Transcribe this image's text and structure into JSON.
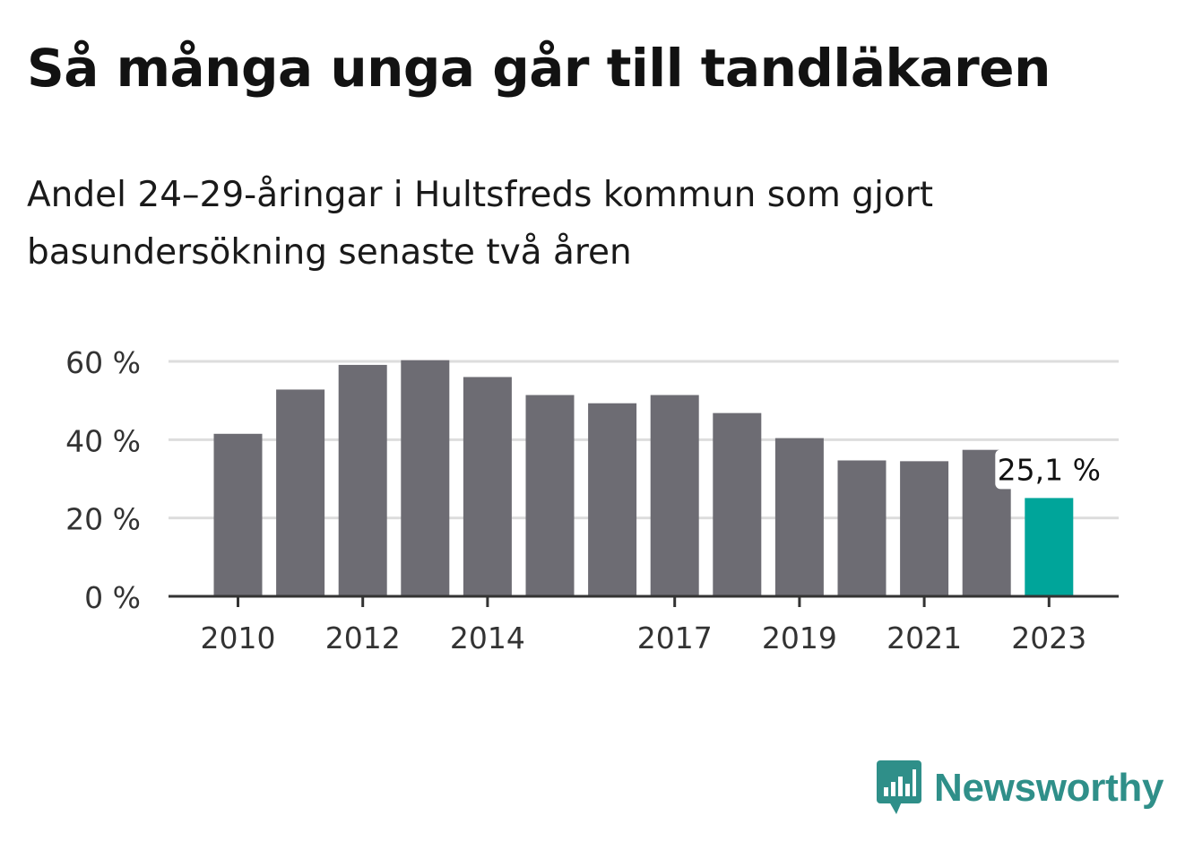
{
  "title": "Så många unga går till tandläkaren",
  "subtitle": "Andel 24–29-åringar i Hultsfreds kommun som gjort basundersökning senaste två åren",
  "brand": {
    "name": "Newsworthy",
    "color": "#2f8f89",
    "icon": "bar-chart-speech-bubble-icon"
  },
  "colors": {
    "bar": "#6d6c73",
    "highlight": "#00a59a",
    "grid": "#dddddd",
    "axis": "#333333"
  },
  "chart_data": {
    "type": "bar",
    "categories": [
      "2010",
      "2011",
      "2012",
      "2013",
      "2014",
      "2015",
      "2016",
      "2017",
      "2018",
      "2019",
      "2020",
      "2021",
      "2022",
      "2023"
    ],
    "values": [
      41.5,
      52.8,
      59.1,
      60.3,
      56.0,
      51.4,
      49.3,
      51.4,
      46.8,
      40.4,
      34.7,
      34.5,
      37.4,
      25.1
    ],
    "highlight_index": 13,
    "annotation": "25,1 %",
    "x_tick_labels": [
      "2010",
      "2012",
      "2014",
      "2017",
      "2019",
      "2021",
      "2023"
    ],
    "y_ticks": [
      0,
      20,
      40,
      60
    ],
    "y_tick_labels": [
      "0 %",
      "20 %",
      "40 %",
      "60 %"
    ],
    "ylim": [
      0,
      60
    ],
    "xlabel": "",
    "ylabel": "",
    "grid": true
  }
}
